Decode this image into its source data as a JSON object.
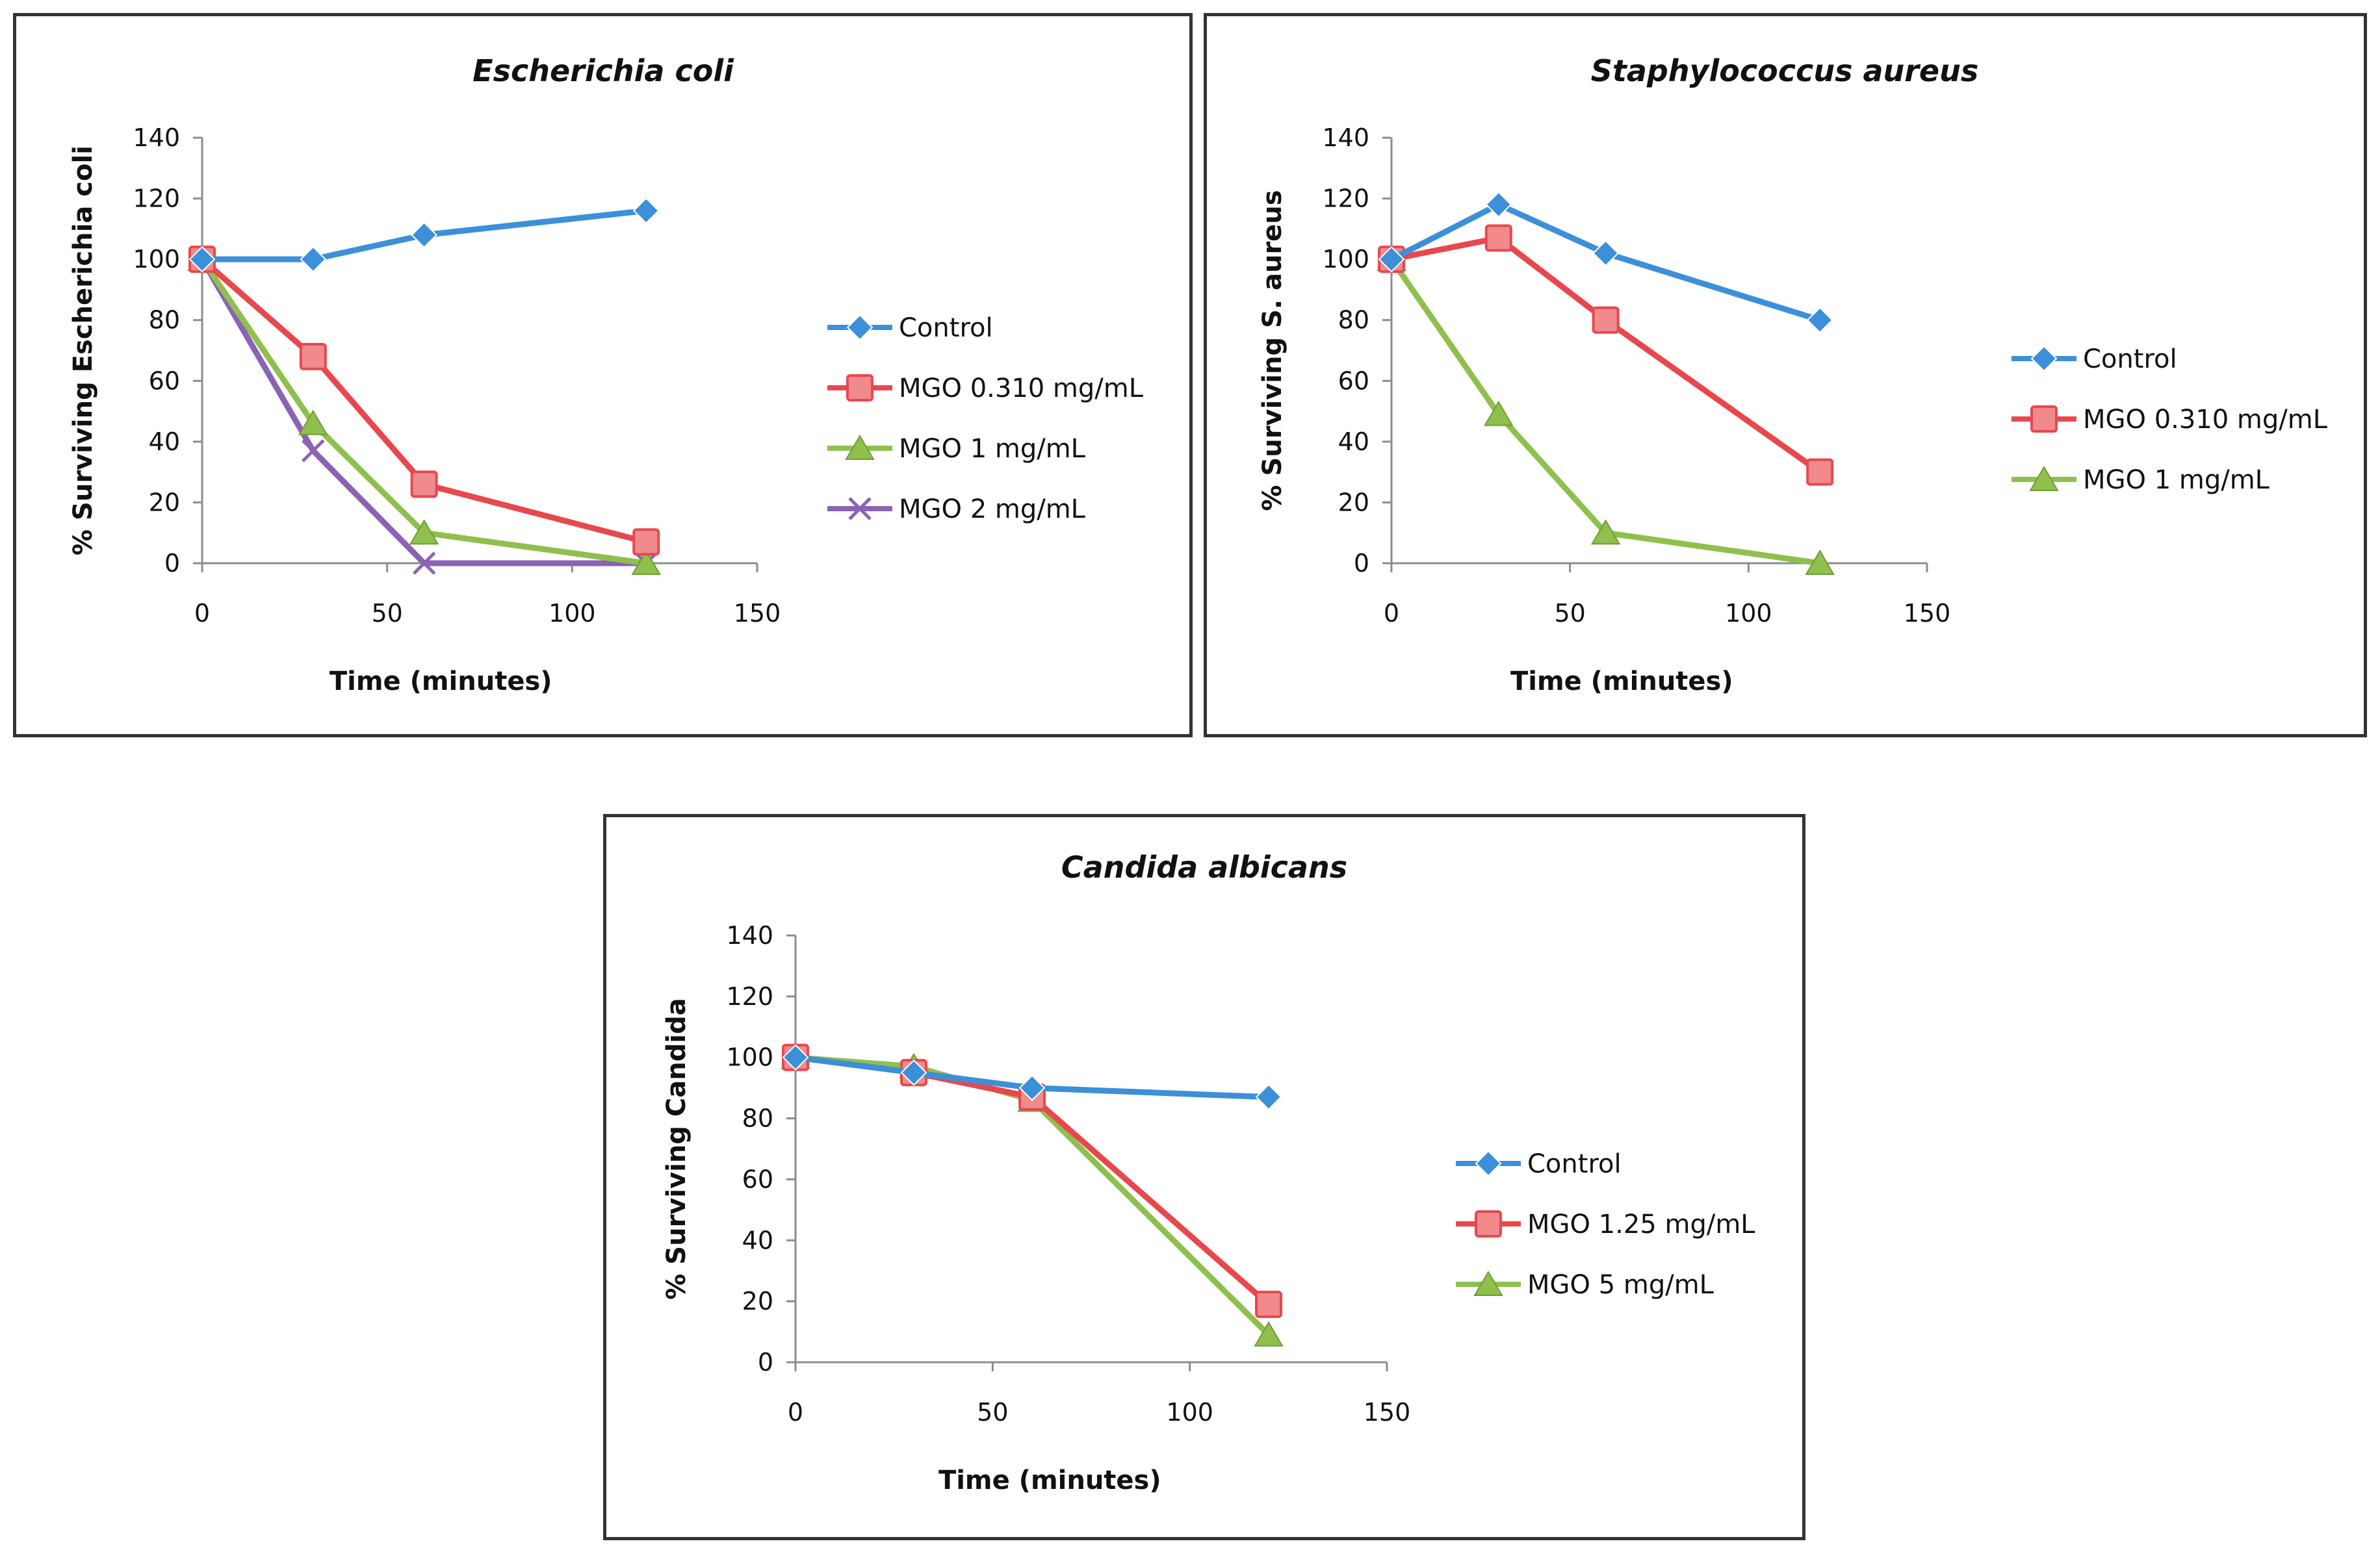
{
  "chart_data": [
    {
      "type": "line",
      "title": "Escherichia coli",
      "xlabel": "Time (minutes)",
      "ylabel": "% Surviving Escherichia coli",
      "xlim": [
        0,
        150
      ],
      "ylim": [
        0,
        140
      ],
      "xticks": [
        0,
        50,
        100,
        150
      ],
      "yticks": [
        0,
        20,
        40,
        60,
        80,
        100,
        120,
        140
      ],
      "legend": "right",
      "x": [
        0,
        30,
        60,
        120
      ],
      "series": [
        {
          "name": "Control",
          "color": "#3c8fd9",
          "marker": "diamond",
          "values": [
            100,
            100,
            108,
            116
          ]
        },
        {
          "name": "MGO 0.310 mg/mL",
          "color": "#e8484d",
          "marker": "square",
          "values": [
            100,
            68,
            26,
            7
          ]
        },
        {
          "name": "MGO 1 mg/mL",
          "color": "#8fc04d",
          "marker": "triangle",
          "values": [
            100,
            46,
            10,
            0
          ]
        },
        {
          "name": "MGO 2 mg/mL",
          "color": "#8a63b5",
          "marker": "x",
          "values": [
            100,
            37,
            0,
            0
          ]
        }
      ]
    },
    {
      "type": "line",
      "title": "Staphylococcus aureus",
      "xlabel": "Time (minutes)",
      "ylabel": "% Surviving S. aureus",
      "xlim": [
        0,
        150
      ],
      "ylim": [
        0,
        140
      ],
      "xticks": [
        0,
        50,
        100,
        150
      ],
      "yticks": [
        0,
        20,
        40,
        60,
        80,
        100,
        120,
        140
      ],
      "legend": "right",
      "x": [
        0,
        30,
        60,
        120
      ],
      "series": [
        {
          "name": "Control",
          "color": "#3c8fd9",
          "marker": "diamond",
          "values": [
            100,
            118,
            102,
            80
          ]
        },
        {
          "name": "MGO 0.310 mg/mL",
          "color": "#e8484d",
          "marker": "square",
          "values": [
            100,
            107,
            80,
            30
          ]
        },
        {
          "name": "MGO 1 mg/mL",
          "color": "#8fc04d",
          "marker": "triangle",
          "values": [
            100,
            49,
            10,
            0
          ]
        }
      ]
    },
    {
      "type": "line",
      "title": "Candida albicans",
      "xlabel": "Time (minutes)",
      "ylabel": "% Surviving Candida",
      "xlim": [
        0,
        150
      ],
      "ylim": [
        0,
        140
      ],
      "xticks": [
        0,
        50,
        100,
        150
      ],
      "yticks": [
        0,
        20,
        40,
        60,
        80,
        100,
        120,
        140
      ],
      "legend": "right",
      "x": [
        0,
        30,
        60,
        120
      ],
      "series": [
        {
          "name": "Control",
          "color": "#3c8fd9",
          "marker": "diamond",
          "values": [
            100,
            95,
            90,
            87
          ]
        },
        {
          "name": "MGO 1.25 mg/mL",
          "color": "#e8484d",
          "marker": "square",
          "values": [
            100,
            95,
            87,
            19
          ]
        },
        {
          "name": "MGO 5 mg/mL",
          "color": "#8fc04d",
          "marker": "triangle",
          "values": [
            100,
            97,
            86,
            9
          ]
        }
      ]
    }
  ]
}
